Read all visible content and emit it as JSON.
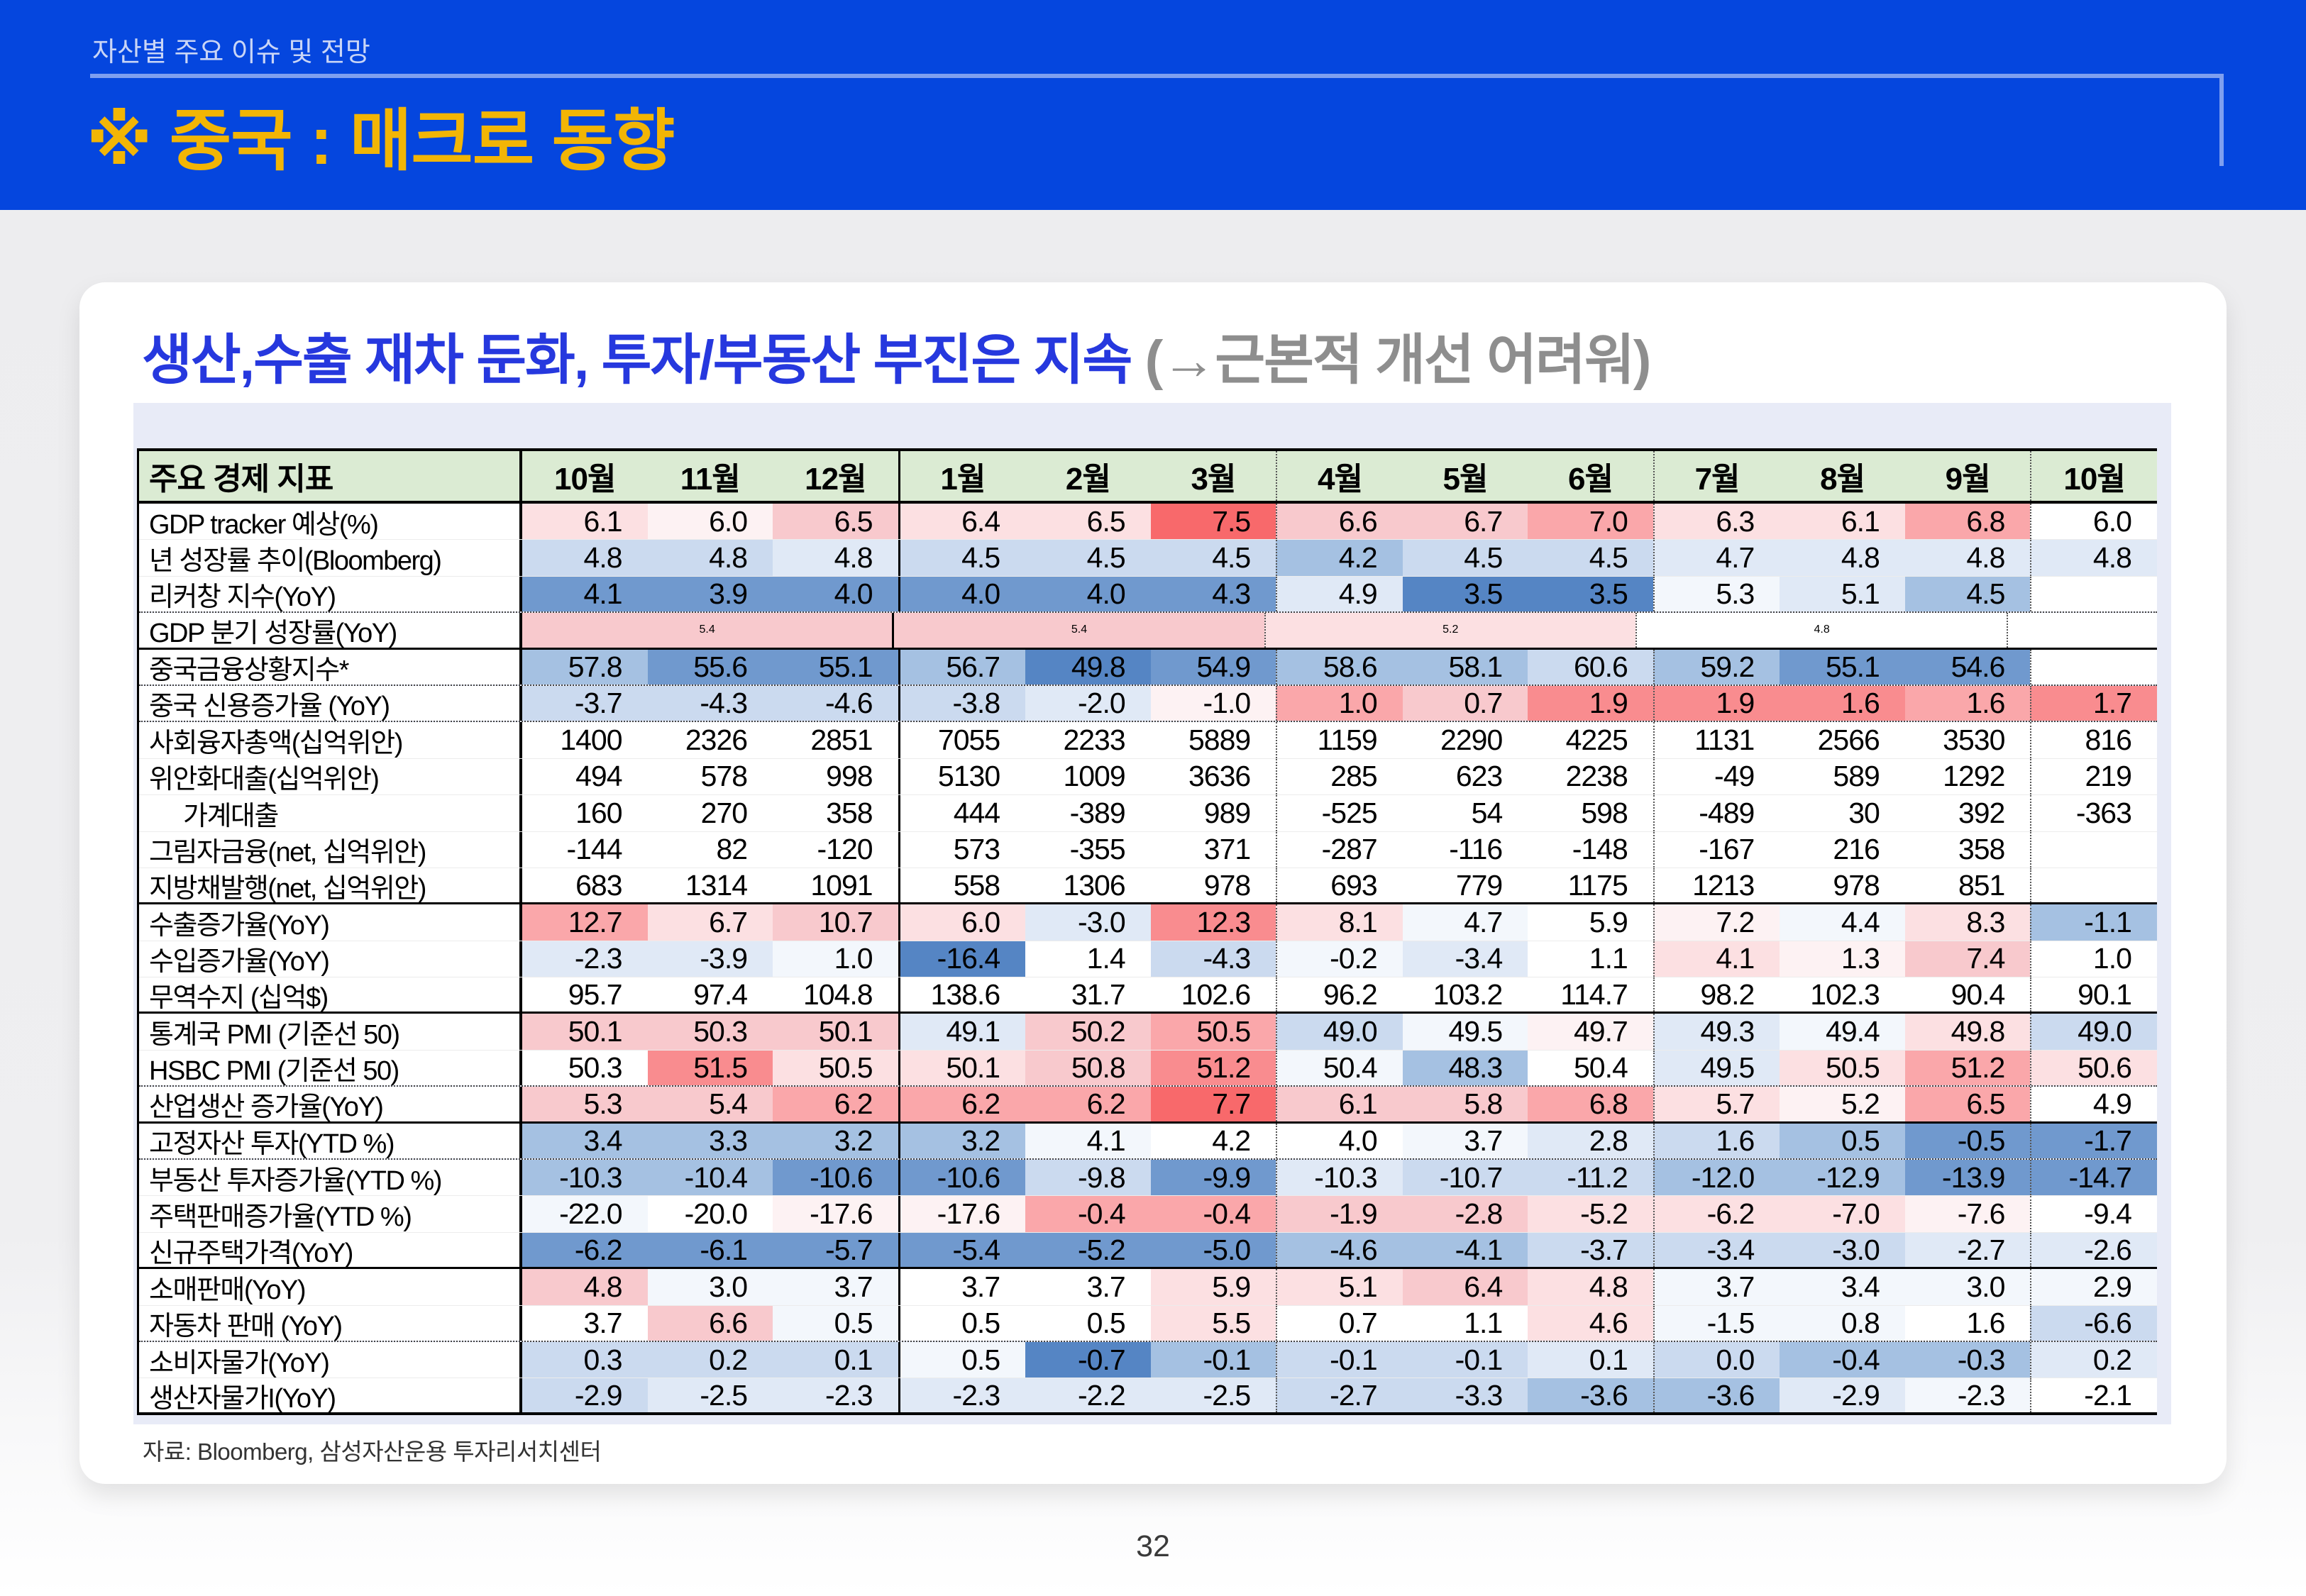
{
  "page": {
    "number": "32"
  },
  "colors": {
    "band_blue": "#0546DE",
    "accent_yellow": "#F2B505",
    "rule_light": "#7F9FEF",
    "eyebrow_text": "#C9D5F6",
    "title_blue": "#2638DE",
    "title_gray": "#8E8E8E",
    "header_green": "#DBEBD3",
    "panel_lavender": "#E8EBF7"
  },
  "header": {
    "eyebrow": "자산별 주요 이슈 및 전망",
    "title": "※ 중국 : 매크로 동향"
  },
  "card": {
    "title_main": "생산,수출 재차 둔화, 투자/부동산 부진은 지속 ",
    "title_sub": "(→근본적 개선 어려워)",
    "source": "자료: Bloomberg, 삼성자산운용 투자리서치센터"
  },
  "table": {
    "header_label": "주요 경제 지표",
    "months": [
      "10월",
      "11월",
      "12월",
      "1월",
      "2월",
      "3월",
      "4월",
      "5월",
      "6월",
      "7월",
      "8월",
      "9월",
      "10월"
    ],
    "palette": {
      "R5": "#F8696B",
      "R4": "#F98C8F",
      "R3": "#FAA7AA",
      "R2": "#F8C9CD",
      "R1": "#FCE0E2",
      "R0": "#FDF2F3",
      "W": "#FFFFFF",
      "B0": "#F3F7FC",
      "B1": "#E0E9F6",
      "B2": "#CBDAEF",
      "B3": "#A5C1E2",
      "B4": "#7099CE",
      "B5": "#5585C4"
    },
    "rows": [
      {
        "label": "GDP tracker 예상(%)",
        "values": [
          "6.1",
          "6.0",
          "6.5",
          "6.4",
          "6.5",
          "7.5",
          "6.6",
          "6.7",
          "7.0",
          "6.3",
          "6.1",
          "6.8",
          "6.0"
        ],
        "colors": [
          "R1",
          "R0",
          "R2",
          "R1",
          "R1",
          "R5",
          "R2",
          "R2",
          "R3",
          "R1",
          "R1",
          "R3",
          "W"
        ],
        "sep": "thin"
      },
      {
        "label": "년 성장률 추이(Bloomberg)",
        "values": [
          "4.8",
          "4.8",
          "4.8",
          "4.5",
          "4.5",
          "4.5",
          "4.2",
          "4.5",
          "4.5",
          "4.7",
          "4.8",
          "4.8",
          "4.8"
        ],
        "colors": [
          "B2",
          "B2",
          "B1",
          "B2",
          "B2",
          "B2",
          "B3",
          "B2",
          "B2",
          "B1",
          "B1",
          "B1",
          "B1"
        ],
        "sep": "thin"
      },
      {
        "label": "리커창 지수(YoY)",
        "values": [
          "4.1",
          "3.9",
          "4.0",
          "4.0",
          "4.0",
          "4.3",
          "4.9",
          "3.5",
          "3.5",
          "5.3",
          "5.1",
          "4.5",
          ""
        ],
        "colors": [
          "B4",
          "B4",
          "B4",
          "B4",
          "B4",
          "B4",
          "B1",
          "B5",
          "B5",
          "B0",
          "B1",
          "B3",
          "W"
        ],
        "sep": "dotted"
      },
      {
        "label": "GDP 분기 성장률(YoY)",
        "type": "quarters",
        "quarters": [
          {
            "value": "5.4",
            "color": "R2"
          },
          {
            "value": "5.4",
            "color": "R2"
          },
          {
            "value": "5.2",
            "color": "R1"
          },
          {
            "value": "4.8",
            "color": "W"
          }
        ],
        "last": {
          "value": "",
          "color": "W"
        },
        "sep": "solid"
      },
      {
        "label": "중국금융상황지수*",
        "values": [
          "57.8",
          "55.6",
          "55.1",
          "56.7",
          "49.8",
          "54.9",
          "58.6",
          "58.1",
          "60.6",
          "59.2",
          "55.1",
          "54.6",
          ""
        ],
        "colors": [
          "B3",
          "B4",
          "B4",
          "B3",
          "B5",
          "B4",
          "B3",
          "B3",
          "B2",
          "B3",
          "B4",
          "B4",
          "W"
        ],
        "sep": "dotted"
      },
      {
        "label": "중국 신용증가율 (YoY)",
        "values": [
          "-3.7",
          "-4.3",
          "-4.6",
          "-3.8",
          "-2.0",
          "-1.0",
          "1.0",
          "0.7",
          "1.9",
          "1.9",
          "1.6",
          "1.6",
          "1.7"
        ],
        "colors": [
          "B2",
          "B2",
          "B2",
          "B2",
          "B1",
          "R0",
          "R3",
          "R2",
          "R4",
          "R4",
          "R4",
          "R3",
          "R4"
        ],
        "sep": "dotted"
      },
      {
        "label": "사회융자총액(십억위안)",
        "values": [
          "1400",
          "2326",
          "2851",
          "7055",
          "2233",
          "5889",
          "1159",
          "2290",
          "4225",
          "1131",
          "2566",
          "3530",
          "816"
        ],
        "colors": [
          "W",
          "W",
          "W",
          "W",
          "W",
          "W",
          "W",
          "W",
          "W",
          "W",
          "W",
          "W",
          "W"
        ],
        "sep": "thin"
      },
      {
        "label": "위안화대출(십억위안)",
        "values": [
          "494",
          "578",
          "998",
          "5130",
          "1009",
          "3636",
          "285",
          "623",
          "2238",
          "-49",
          "589",
          "1292",
          "219"
        ],
        "colors": [
          "W",
          "W",
          "W",
          "W",
          "W",
          "W",
          "W",
          "W",
          "W",
          "W",
          "W",
          "W",
          "W"
        ],
        "sep": "thin"
      },
      {
        "label": "가계대출",
        "indent": true,
        "values": [
          "160",
          "270",
          "358",
          "444",
          "-389",
          "989",
          "-525",
          "54",
          "598",
          "-489",
          "30",
          "392",
          "-363"
        ],
        "colors": [
          "W",
          "W",
          "W",
          "W",
          "W",
          "W",
          "W",
          "W",
          "W",
          "W",
          "W",
          "W",
          "W"
        ],
        "sep": "thin"
      },
      {
        "label": "그림자금융(net, 십억위안)",
        "values": [
          "-144",
          "82",
          "-120",
          "573",
          "-355",
          "371",
          "-287",
          "-116",
          "-148",
          "-167",
          "216",
          "358",
          ""
        ],
        "colors": [
          "W",
          "W",
          "W",
          "W",
          "W",
          "W",
          "W",
          "W",
          "W",
          "W",
          "W",
          "W",
          "W"
        ],
        "sep": "thin"
      },
      {
        "label": "지방채발행(net, 십억위안)",
        "values": [
          "683",
          "1314",
          "1091",
          "558",
          "1306",
          "978",
          "693",
          "779",
          "1175",
          "1213",
          "978",
          "851",
          ""
        ],
        "colors": [
          "W",
          "W",
          "W",
          "W",
          "W",
          "W",
          "W",
          "W",
          "W",
          "W",
          "W",
          "W",
          "W"
        ],
        "sep": "solid"
      },
      {
        "label": "수출증가율(YoY)",
        "values": [
          "12.7",
          "6.7",
          "10.7",
          "6.0",
          "-3.0",
          "12.3",
          "8.1",
          "4.7",
          "5.9",
          "7.2",
          "4.4",
          "8.3",
          "-1.1"
        ],
        "colors": [
          "R3",
          "R1",
          "R2",
          "R1",
          "B1",
          "R4",
          "R1",
          "B0",
          "W",
          "R0",
          "B0",
          "R1",
          "B3"
        ],
        "sep": "thin"
      },
      {
        "label": "수입증가율(YoY)",
        "values": [
          "-2.3",
          "-3.9",
          "1.0",
          "-16.4",
          "1.4",
          "-4.3",
          "-0.2",
          "-3.4",
          "1.1",
          "4.1",
          "1.3",
          "7.4",
          "1.0"
        ],
        "colors": [
          "B1",
          "B1",
          "B0",
          "B5",
          "W",
          "B2",
          "B0",
          "B1",
          "W",
          "R1",
          "R0",
          "R2",
          "W"
        ],
        "sep": "thin"
      },
      {
        "label": "무역수지 (십억$)",
        "values": [
          "95.7",
          "97.4",
          "104.8",
          "138.6",
          "31.7",
          "102.6",
          "96.2",
          "103.2",
          "114.7",
          "98.2",
          "102.3",
          "90.4",
          "90.1"
        ],
        "colors": [
          "W",
          "W",
          "W",
          "W",
          "W",
          "W",
          "W",
          "W",
          "W",
          "W",
          "W",
          "W",
          "W"
        ],
        "sep": "solid"
      },
      {
        "label": "통계국 PMI (기준선 50)",
        "values": [
          "50.1",
          "50.3",
          "50.1",
          "49.1",
          "50.2",
          "50.5",
          "49.0",
          "49.5",
          "49.7",
          "49.3",
          "49.4",
          "49.8",
          "49.0"
        ],
        "colors": [
          "R2",
          "R2",
          "R2",
          "B1",
          "R2",
          "R3",
          "B2",
          "B0",
          "R0",
          "B1",
          "B0",
          "R1",
          "B2"
        ],
        "sep": "thin"
      },
      {
        "label": "HSBC PMI (기준선 50)",
        "values": [
          "50.3",
          "51.5",
          "50.5",
          "50.1",
          "50.8",
          "51.2",
          "50.4",
          "48.3",
          "50.4",
          "49.5",
          "50.5",
          "51.2",
          "50.6"
        ],
        "colors": [
          "W",
          "R4",
          "R1",
          "R1",
          "R2",
          "R4",
          "B0",
          "B3",
          "W",
          "B1",
          "R1",
          "R3",
          "R1"
        ],
        "sep": "dotted"
      },
      {
        "label": "산업생산 증가율(YoY)",
        "values": [
          "5.3",
          "5.4",
          "6.2",
          "6.2",
          "6.2",
          "7.7",
          "6.1",
          "5.8",
          "6.8",
          "5.7",
          "5.2",
          "6.5",
          "4.9"
        ],
        "colors": [
          "R2",
          "R2",
          "R3",
          "R3",
          "R3",
          "R5",
          "R2",
          "R2",
          "R3",
          "R1",
          "R0",
          "R3",
          "W"
        ],
        "sep": "solid"
      },
      {
        "label": "고정자산 투자(YTD %)",
        "values": [
          "3.4",
          "3.3",
          "3.2",
          "3.2",
          "4.1",
          "4.2",
          "4.0",
          "3.7",
          "2.8",
          "1.6",
          "0.5",
          "-0.5",
          "-1.7"
        ],
        "colors": [
          "B3",
          "B3",
          "B3",
          "B3",
          "B0",
          "W",
          "W",
          "B0",
          "B1",
          "B2",
          "B3",
          "B4",
          "B4"
        ],
        "sep": "dotted"
      },
      {
        "label": "부동산 투자증가율(YTD %)",
        "values": [
          "-10.3",
          "-10.4",
          "-10.6",
          "-10.6",
          "-9.8",
          "-9.9",
          "-10.3",
          "-10.7",
          "-11.2",
          "-12.0",
          "-12.9",
          "-13.9",
          "-14.7"
        ],
        "colors": [
          "B3",
          "B3",
          "B4",
          "B4",
          "B2",
          "B4",
          "B1",
          "B2",
          "B2",
          "B3",
          "B3",
          "B4",
          "B4"
        ],
        "sep": "thin"
      },
      {
        "label": "주택판매증가율(YTD %)",
        "values": [
          "-22.0",
          "-20.0",
          "-17.6",
          "-17.6",
          "-0.4",
          "-0.4",
          "-1.9",
          "-2.8",
          "-5.2",
          "-6.2",
          "-7.0",
          "-7.6",
          "-9.4"
        ],
        "colors": [
          "B0",
          "W",
          "R0",
          "R0",
          "R3",
          "R3",
          "R2",
          "R2",
          "R1",
          "R1",
          "R1",
          "R0",
          "W"
        ],
        "sep": "thin"
      },
      {
        "label": "신규주택가격(YoY)",
        "values": [
          "-6.2",
          "-6.1",
          "-5.7",
          "-5.4",
          "-5.2",
          "-5.0",
          "-4.6",
          "-4.1",
          "-3.7",
          "-3.4",
          "-3.0",
          "-2.7",
          "-2.6"
        ],
        "colors": [
          "B4",
          "B4",
          "B4",
          "B4",
          "B4",
          "B4",
          "B3",
          "B3",
          "B2",
          "B2",
          "B2",
          "B1",
          "B1"
        ],
        "sep": "solid"
      },
      {
        "label": "소매판매(YoY)",
        "values": [
          "4.8",
          "3.0",
          "3.7",
          "3.7",
          "3.7",
          "5.9",
          "5.1",
          "6.4",
          "4.8",
          "3.7",
          "3.4",
          "3.0",
          "2.9"
        ],
        "colors": [
          "R2",
          "B0",
          "B0",
          "W",
          "W",
          "R1",
          "R1",
          "R2",
          "R1",
          "B0",
          "B0",
          "B0",
          "B0"
        ],
        "sep": "thin"
      },
      {
        "label": "자동차 판매 (YoY)",
        "values": [
          "3.7",
          "6.6",
          "0.5",
          "0.5",
          "0.5",
          "5.5",
          "0.7",
          "1.1",
          "4.6",
          "-1.5",
          "0.8",
          "1.6",
          "-6.6"
        ],
        "colors": [
          "W",
          "R2",
          "B0",
          "W",
          "W",
          "R1",
          "W",
          "W",
          "R1",
          "B0",
          "B0",
          "W",
          "B2"
        ],
        "sep": "dotted"
      },
      {
        "label": "소비자물가(YoY)",
        "values": [
          "0.3",
          "0.2",
          "0.1",
          "0.5",
          "-0.7",
          "-0.1",
          "-0.1",
          "-0.1",
          "0.1",
          "0.0",
          "-0.4",
          "-0.3",
          "0.2"
        ],
        "colors": [
          "B2",
          "B2",
          "B2",
          "B0",
          "B5",
          "B3",
          "B2",
          "B2",
          "B1",
          "B2",
          "B3",
          "B3",
          "B1"
        ],
        "sep": "thin"
      },
      {
        "label": "생산자물가I(YoY)",
        "values": [
          "-2.9",
          "-2.5",
          "-2.3",
          "-2.3",
          "-2.2",
          "-2.5",
          "-2.7",
          "-3.3",
          "-3.6",
          "-3.6",
          "-2.9",
          "-2.3",
          "-2.1"
        ],
        "colors": [
          "B2",
          "B1",
          "B1",
          "B1",
          "B1",
          "B1",
          "B2",
          "B2",
          "B3",
          "B3",
          "B1",
          "B0",
          "W"
        ],
        "sep": "thick"
      }
    ]
  }
}
